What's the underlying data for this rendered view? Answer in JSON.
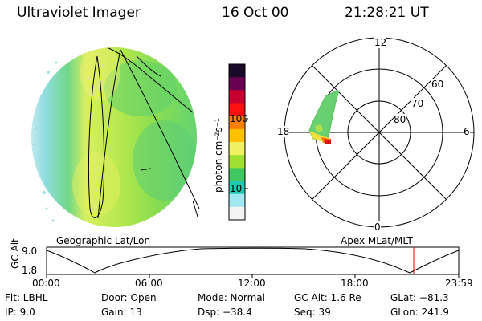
{
  "header": {
    "title": "Ultraviolet Imager",
    "date": "16 Oct 00",
    "time": "21:28:21 UT"
  },
  "colorbar": {
    "unit_label": "photon cm⁻²s⁻¹",
    "ticks": [
      "100",
      "10"
    ],
    "colors": [
      "#1a0a2a",
      "#6a0050",
      "#c80030",
      "#ff1010",
      "#ff8000",
      "#ffc000",
      "#f0f060",
      "#a0e030",
      "#40c860",
      "#20c8b0",
      "#a0e8f0",
      "#f4f4f4"
    ]
  },
  "polar": {
    "labels": {
      "top": "12",
      "bottom": "0",
      "left": "18",
      "right": "6"
    },
    "lat_labels": [
      "60",
      "70",
      "80"
    ]
  },
  "projections": {
    "left": "Geographic Lat/Lon",
    "right": "Apex MLat/MLT"
  },
  "altitude": {
    "axis_title": "GC Alt",
    "y_ticks": [
      "9.0",
      "1.8"
    ],
    "x_ticks": [
      "00:00",
      "06:00",
      "12:00",
      "18:00",
      "23:59"
    ]
  },
  "info": {
    "flt": "Flt: LBHL",
    "ip": "IP: 9.0",
    "door": "Door: Open",
    "gain": "Gain: 13",
    "mode": "Mode: Normal",
    "dsp": "Dsp: −38.4",
    "gcalt": "GC Alt: 1.6 Re",
    "seq": "Seq: 39",
    "glat": "GLat: −81.3",
    "glon": "GLon: 241.9"
  }
}
